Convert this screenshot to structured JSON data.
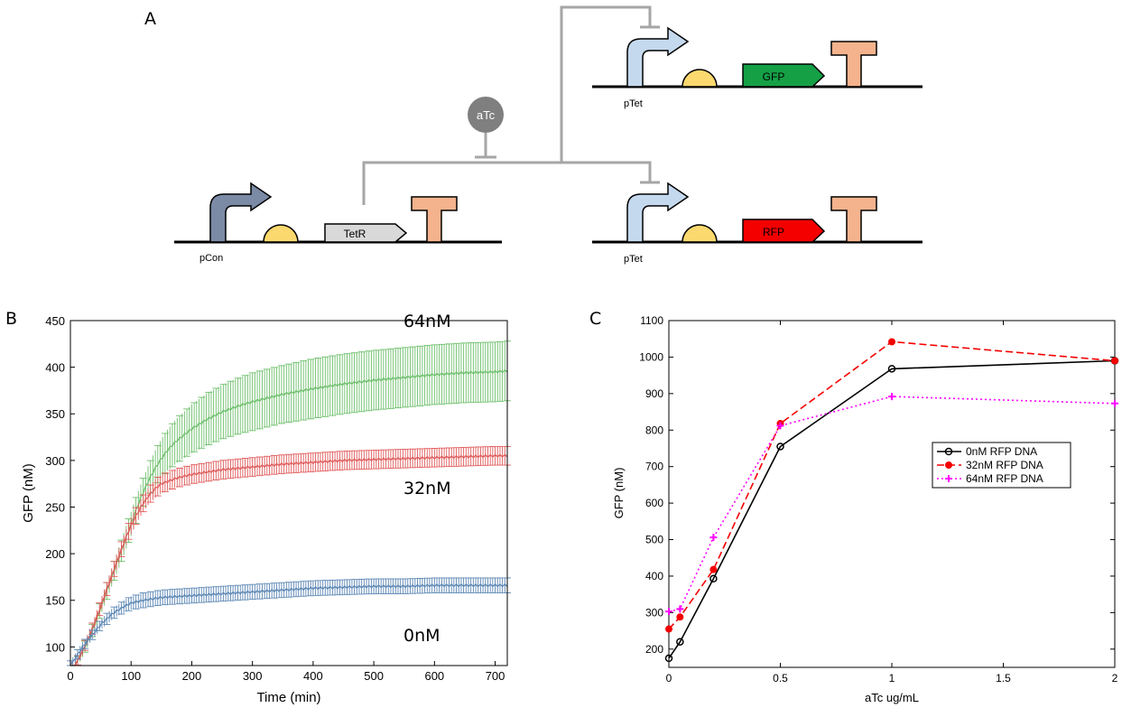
{
  "panels": {
    "a": "A",
    "b": "B",
    "c": "C"
  },
  "diagram": {
    "inducer": "aTc",
    "genes": {
      "tetr": "TetR",
      "gfp": "GFP",
      "rfp": "RFP"
    },
    "promoters": {
      "pcon": "pCon",
      "ptet_gfp": "pTet",
      "ptet_rfp": "pTet"
    },
    "colors": {
      "line": "#a6a6a6",
      "pcon_arrow": "#7b8aa5",
      "ptet_arrow": "#c5d9ee",
      "rbs": "#fbd96e",
      "terminator": "#f4b38c",
      "tetr": "#d9d9d9",
      "gfp": "#15a046",
      "rfp": "#f40000",
      "atc": "#7f7f7f"
    }
  },
  "chart_data": [
    {
      "type": "line",
      "panel": "B",
      "xlabel": "Time (min)",
      "ylabel": "GFP (nM)",
      "xlim": [
        0,
        720
      ],
      "ylim": [
        80,
        450
      ],
      "xticks": [
        0,
        100,
        200,
        300,
        400,
        500,
        600,
        700
      ],
      "yticks": [
        100,
        150,
        200,
        250,
        300,
        350,
        400,
        450
      ],
      "series": [
        {
          "name": "0nM",
          "color": "#5b86b4",
          "x": [
            0,
            10,
            20,
            30,
            40,
            50,
            60,
            70,
            80,
            90,
            100,
            120,
            150,
            200,
            250,
            300,
            350,
            400,
            450,
            500,
            550,
            600,
            650,
            700,
            720
          ],
          "y": [
            80,
            90,
            100,
            108,
            116,
            124,
            130,
            136,
            140,
            144,
            147,
            150,
            153,
            155,
            157,
            159,
            161,
            163,
            164,
            165,
            165,
            166,
            166,
            166,
            166
          ],
          "err": [
            5,
            5,
            5,
            5,
            5,
            5,
            6,
            6,
            6,
            7,
            7,
            8,
            8,
            8,
            8,
            8,
            8,
            8,
            8,
            8,
            8,
            8,
            8,
            8,
            8
          ]
        },
        {
          "name": "32nM",
          "color": "#e05a5a",
          "x": [
            0,
            10,
            20,
            30,
            40,
            50,
            60,
            70,
            80,
            90,
            100,
            110,
            120,
            130,
            140,
            150,
            175,
            200,
            250,
            300,
            350,
            400,
            450,
            500,
            550,
            600,
            650,
            700,
            720
          ],
          "y": [
            75,
            83,
            96,
            110,
            126,
            144,
            162,
            180,
            198,
            215,
            230,
            243,
            254,
            263,
            270,
            275,
            281,
            285,
            290,
            293,
            296,
            298,
            300,
            301,
            302,
            303,
            304,
            305,
            305
          ],
          "err": [
            5,
            5,
            5,
            6,
            6,
            7,
            7,
            8,
            8,
            8,
            9,
            9,
            9,
            9,
            10,
            10,
            10,
            10,
            10,
            10,
            10,
            10,
            10,
            10,
            10,
            10,
            10,
            10,
            10
          ]
        },
        {
          "name": "64nM",
          "color": "#6cbf6a",
          "x": [
            0,
            10,
            20,
            30,
            40,
            50,
            60,
            70,
            80,
            90,
            100,
            110,
            120,
            130,
            140,
            150,
            160,
            175,
            200,
            225,
            250,
            275,
            300,
            350,
            400,
            450,
            500,
            550,
            600,
            650,
            700,
            720
          ],
          "y": [
            75,
            82,
            95,
            108,
            124,
            142,
            160,
            178,
            196,
            214,
            232,
            250,
            266,
            280,
            292,
            302,
            311,
            321,
            334,
            344,
            352,
            358,
            363,
            371,
            377,
            382,
            386,
            389,
            392,
            394,
            395,
            396
          ],
          "err": [
            5,
            5,
            6,
            6,
            7,
            8,
            9,
            10,
            11,
            12,
            13,
            14,
            15,
            17,
            19,
            21,
            22,
            24,
            26,
            28,
            29,
            30,
            31,
            31,
            32,
            32,
            32,
            32,
            32,
            32,
            32,
            32
          ]
        }
      ],
      "labels": [
        "64nM",
        "32nM",
        "0nM"
      ]
    },
    {
      "type": "line",
      "panel": "C",
      "xlabel": "aTc ug/mL",
      "ylabel": "GFP (nM)",
      "xlim": [
        0,
        2
      ],
      "ylim": [
        150,
        1100
      ],
      "xticks": [
        0,
        0.5,
        1,
        1.5,
        2
      ],
      "yticks": [
        200,
        300,
        400,
        500,
        600,
        700,
        800,
        900,
        1000,
        1100
      ],
      "xtick_labels": [
        "0",
        "0.5",
        "1",
        "1.5",
        "2"
      ],
      "legend": "center-right",
      "series": [
        {
          "name": "0nM RFP DNA",
          "color": "#000000",
          "marker": "o",
          "line": "solid",
          "x": [
            0,
            0.05,
            0.2,
            0.5,
            1,
            2
          ],
          "y": [
            175,
            220,
            393,
            755,
            968,
            990
          ]
        },
        {
          "name": "32nM RFP DNA",
          "color": "#f40000",
          "marker": "*",
          "line": "dashed",
          "x": [
            0,
            0.05,
            0.2,
            0.5,
            1,
            2
          ],
          "y": [
            255,
            288,
            418,
            818,
            1042,
            990
          ]
        },
        {
          "name": "64nM RFP DNA",
          "color": "#ff00ff",
          "marker": "+",
          "line": "dotted",
          "x": [
            0,
            0.05,
            0.2,
            0.5,
            1,
            2
          ],
          "y": [
            303,
            310,
            506,
            812,
            892,
            873
          ]
        }
      ]
    }
  ]
}
